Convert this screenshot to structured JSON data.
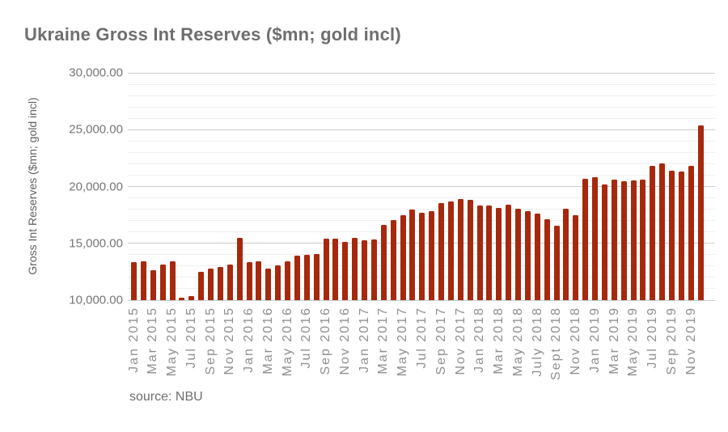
{
  "page": {
    "title": "Ukraine Gross Int Reserves ($mn; gold incl)",
    "source_note": "source: NBU"
  },
  "colors": {
    "bar": "#A6290D",
    "title_text": "#6E6E6E",
    "y_axis_text": "#757575",
    "y_axis_title_text": "#616161",
    "x_axis_text": "#8F8F8F",
    "gridline_major": "#CCCCCC",
    "gridline_minor": "#EFEFEF",
    "background": "#FFFFFF"
  },
  "chart_data": {
    "type": "bar",
    "title": "Ukraine Gross Int Reserves ($mn; gold incl)",
    "xlabel": "",
    "ylabel": "Gross Int Reserves ($mn; gold incl)",
    "ylim": [
      10000,
      30000
    ],
    "ytick_major_interval": 5000,
    "ytick_minor_interval": 1000,
    "ytick_values": [
      30000,
      25000,
      20000,
      15000,
      10000
    ],
    "ytick_labels": [
      "30,000.00",
      "25,000.00",
      "20,000.00",
      "15,000.00",
      "10,000.00"
    ],
    "grid": "horizontal major+minor",
    "legend": "none",
    "x_tick_every": 2,
    "x_tick_labels": [
      "Jan 2015",
      "Mar 2015",
      "May 2015",
      "Jul 2015",
      "Sep 2015",
      "Nov 2015",
      "Jan 2016",
      "Mar 2016",
      "May 2016",
      "Jul 2016",
      "Sep 2016",
      "Nov 2016",
      "Jan 2017",
      "Mar 2017",
      "May 2017",
      "Jul 2017",
      "Sep 2017",
      "Nov 2017",
      "Jan 2018",
      "Mar 2018",
      "May 2018",
      "July 2018",
      "Sept 2018",
      "Nov 2018",
      "Jan 2019",
      "Mar 2019",
      "May 2019",
      "Jul 2019",
      "Sep 2019",
      "Nov 2019"
    ],
    "categories": [
      "Jan 2015",
      "Feb 2015",
      "Mar 2015",
      "Apr 2015",
      "May 2015",
      "Jun 2015",
      "Jul 2015",
      "Aug 2015",
      "Sep 2015",
      "Oct 2015",
      "Nov 2015",
      "Dec 2015",
      "Jan 2016",
      "Feb 2016",
      "Mar 2016",
      "Apr 2016",
      "May 2016",
      "Jun 2016",
      "Jul 2016",
      "Aug 2016",
      "Sep 2016",
      "Oct 2016",
      "Nov 2016",
      "Dec 2016",
      "Jan 2017",
      "Feb 2017",
      "Mar 2017",
      "Apr 2017",
      "May 2017",
      "Jun 2017",
      "Jul 2017",
      "Aug 2017",
      "Sep 2017",
      "Oct 2017",
      "Nov 2017",
      "Dec 2017",
      "Jan 2018",
      "Feb 2018",
      "Mar 2018",
      "Apr 2018",
      "May 2018",
      "Jun 2018",
      "July 2018",
      "Aug 2018",
      "Sept 2018",
      "Oct 2018",
      "Nov 2018",
      "Dec 2018",
      "Jan 2019",
      "Feb 2019",
      "Mar 2019",
      "Apr 2019",
      "May 2019",
      "Jun 2019",
      "Jul 2019",
      "Aug 2019",
      "Sep 2019",
      "Oct 2019",
      "Nov 2019",
      "Dec 2019"
    ],
    "values": [
      13350,
      13450,
      12650,
      13100,
      13450,
      10250,
      10350,
      12500,
      12750,
      12950,
      13100,
      15450,
      13350,
      13450,
      12800,
      13050,
      13450,
      13900,
      14000,
      14050,
      15400,
      15400,
      15100,
      15450,
      15300,
      15350,
      16600,
      17050,
      17450,
      17980,
      17700,
      17850,
      18550,
      18700,
      18900,
      18800,
      18350,
      18350,
      18100,
      18400,
      18050,
      17850,
      17600,
      17100,
      16550,
      18050,
      17500,
      20700,
      20800,
      20200,
      20600,
      20500,
      20550,
      20600,
      21850,
      22000,
      21400,
      21300,
      21850,
      25350
    ],
    "source": "source: NBU"
  }
}
